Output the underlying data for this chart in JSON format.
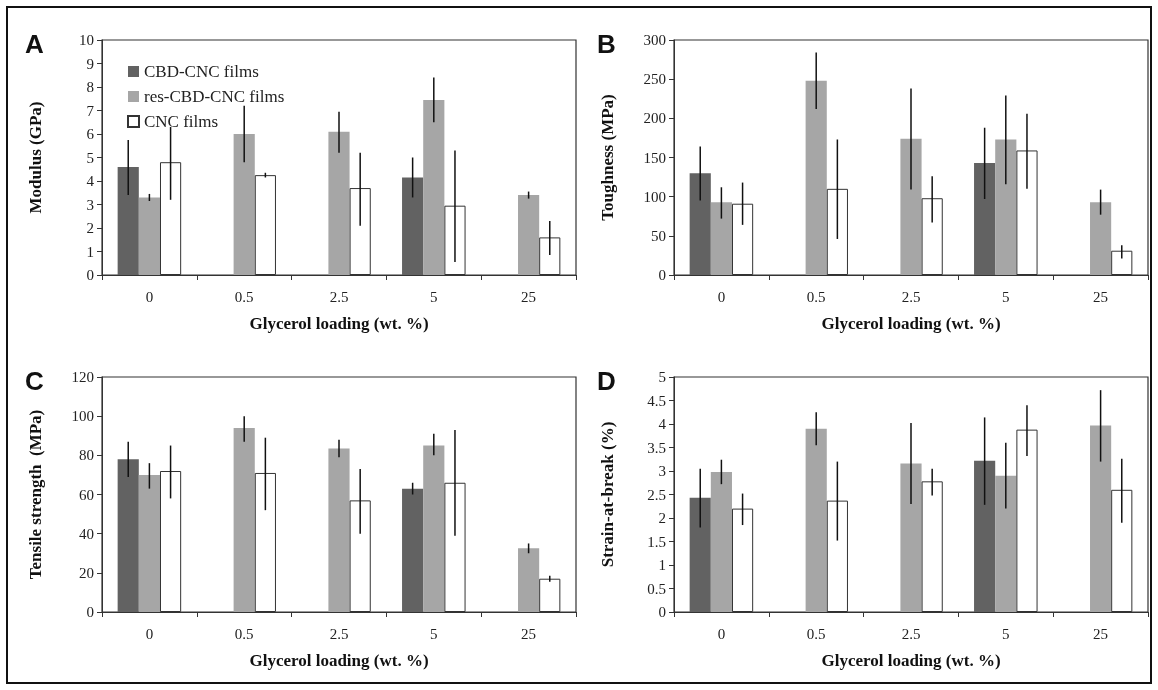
{
  "chart_data": [
    {
      "type": "bar",
      "title": "A",
      "xlabel": "Glycerol loading (wt. %)",
      "ylabel": "Modulus (GPa)",
      "categories": [
        "0",
        "0.5",
        "2.5",
        "5",
        "25"
      ],
      "ylim": [
        0,
        10
      ],
      "yticks": [
        0,
        1,
        2,
        3,
        4,
        5,
        6,
        7,
        8,
        9,
        10
      ],
      "legend": "top left",
      "grid": false,
      "series": [
        {
          "name": "CBD-CNC films",
          "color": "#626262",
          "values": [
            4.6,
            null,
            null,
            4.15,
            null
          ],
          "errors": [
            [
              3.4,
              5.75
            ],
            null,
            null,
            [
              3.3,
              5.0
            ],
            null
          ]
        },
        {
          "name": "res-CBD-CNC films",
          "color": "#a6a6a6",
          "values": [
            3.3,
            6.0,
            6.1,
            7.45,
            3.4
          ],
          "errors": [
            [
              3.15,
              3.45
            ],
            [
              4.8,
              7.2
            ],
            [
              5.2,
              6.95
            ],
            [
              6.5,
              8.4
            ],
            [
              3.25,
              3.55
            ]
          ]
        },
        {
          "name": "CNC films",
          "color": "#ffffff",
          "values": [
            4.8,
            4.25,
            3.7,
            2.95,
            1.6
          ],
          "errors": [
            [
              3.2,
              6.3
            ],
            [
              4.15,
              4.35
            ],
            [
              2.1,
              5.2
            ],
            [
              0.55,
              5.3
            ],
            [
              0.85,
              2.3
            ]
          ]
        }
      ]
    },
    {
      "type": "bar",
      "title": "B",
      "xlabel": "Glycerol loading (wt. %)",
      "ylabel": "Toughness (MPa)",
      "categories": [
        "0",
        "0.5",
        "2.5",
        "5",
        "25"
      ],
      "ylim": [
        0,
        300
      ],
      "yticks": [
        0,
        50,
        100,
        150,
        200,
        250,
        300
      ],
      "grid": false,
      "series": [
        {
          "color": "#626262",
          "values": [
            130,
            null,
            null,
            143,
            null
          ],
          "errors": [
            [
              95,
              164
            ],
            null,
            null,
            [
              97,
              188
            ],
            null
          ]
        },
        {
          "color": "#a6a6a6",
          "values": [
            93,
            248,
            174,
            173,
            93
          ],
          "errors": [
            [
              72,
              112
            ],
            [
              212,
              284
            ],
            [
              109,
              238
            ],
            [
              116,
              229
            ],
            [
              77,
              109
            ]
          ]
        },
        {
          "color": "#ffffff",
          "values": [
            91,
            110,
            98,
            159,
            31
          ],
          "errors": [
            [
              64,
              118
            ],
            [
              46,
              173
            ],
            [
              67,
              126
            ],
            [
              110,
              206
            ],
            [
              21,
              38
            ]
          ]
        }
      ]
    },
    {
      "type": "bar",
      "title": "C",
      "xlabel": "Glycerol loading (wt. %)",
      "ylabel": "Tensile strength  (MPa)",
      "categories": [
        "0",
        "0.5",
        "2.5",
        "5",
        "25"
      ],
      "ylim": [
        0,
        120
      ],
      "yticks": [
        0,
        20,
        40,
        60,
        80,
        100,
        120
      ],
      "grid": false,
      "series": [
        {
          "color": "#626262",
          "values": [
            78,
            null,
            null,
            63,
            null
          ],
          "errors": [
            [
              69,
              87
            ],
            null,
            null,
            [
              60,
              66
            ],
            null
          ]
        },
        {
          "color": "#a6a6a6",
          "values": [
            70,
            94,
            83.5,
            85,
            32.5
          ],
          "errors": [
            [
              63,
              76
            ],
            [
              87,
              100
            ],
            [
              79,
              88
            ],
            [
              80,
              91
            ],
            [
              30,
              35
            ]
          ]
        },
        {
          "color": "#ffffff",
          "values": [
            72,
            71,
            57,
            66,
            17
          ],
          "errors": [
            [
              58,
              85
            ],
            [
              52,
              89
            ],
            [
              40,
              73
            ],
            [
              39,
              93
            ],
            [
              15.5,
              18.5
            ]
          ]
        }
      ]
    },
    {
      "type": "bar",
      "title": "D",
      "xlabel": "Glycerol loading (wt. %)",
      "ylabel": "Strain-at-break (%)",
      "categories": [
        "0",
        "0.5",
        "2.5",
        "5",
        "25"
      ],
      "ylim": [
        0,
        5
      ],
      "yticks": [
        0,
        0.5,
        1,
        1.5,
        2,
        2.5,
        3,
        3.5,
        4,
        4.5,
        5
      ],
      "grid": false,
      "series": [
        {
          "color": "#626262",
          "values": [
            2.43,
            null,
            null,
            3.22,
            null
          ],
          "errors": [
            [
              1.8,
              3.05
            ],
            null,
            null,
            [
              2.28,
              4.14
            ],
            null
          ]
        },
        {
          "color": "#a6a6a6",
          "values": [
            2.98,
            3.9,
            3.16,
            2.9,
            3.97
          ],
          "errors": [
            [
              2.72,
              3.24
            ],
            [
              3.55,
              4.25
            ],
            [
              2.3,
              4.02
            ],
            [
              2.2,
              3.6
            ],
            [
              3.2,
              4.72
            ]
          ]
        },
        {
          "color": "#ffffff",
          "values": [
            2.2,
            2.37,
            2.78,
            3.88,
            2.6
          ],
          "errors": [
            [
              1.85,
              2.52
            ],
            [
              1.52,
              3.2
            ],
            [
              2.48,
              3.05
            ],
            [
              3.32,
              4.4
            ],
            [
              1.9,
              3.26
            ]
          ]
        }
      ]
    }
  ]
}
